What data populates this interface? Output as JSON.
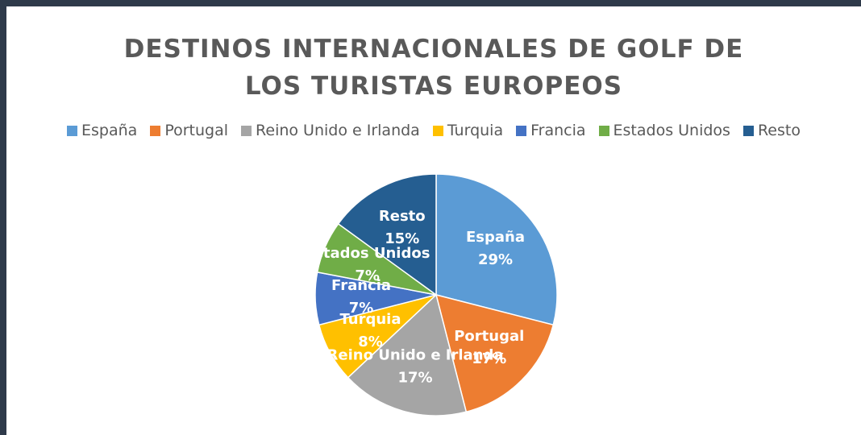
{
  "chart_data": {
    "type": "pie",
    "title": "DESTINOS INTERNACIONALES DE GOLF DE LOS TURISTAS EUROPEOS",
    "categories": [
      "España",
      "Portugal",
      "Reino Unido e Irlanda",
      "Turquia",
      "Francia",
      "Estados Unidos",
      "Resto"
    ],
    "values": [
      29,
      17,
      17,
      8,
      7,
      7,
      15
    ],
    "value_labels": [
      "29%",
      "17%",
      "17%",
      "8%",
      "7%",
      "7%",
      "15%"
    ],
    "colors": [
      "#5b9bd5",
      "#ed7d31",
      "#a5a5a5",
      "#ffc000",
      "#4472c4",
      "#70ad47",
      "#255e91"
    ],
    "legend": "top"
  }
}
